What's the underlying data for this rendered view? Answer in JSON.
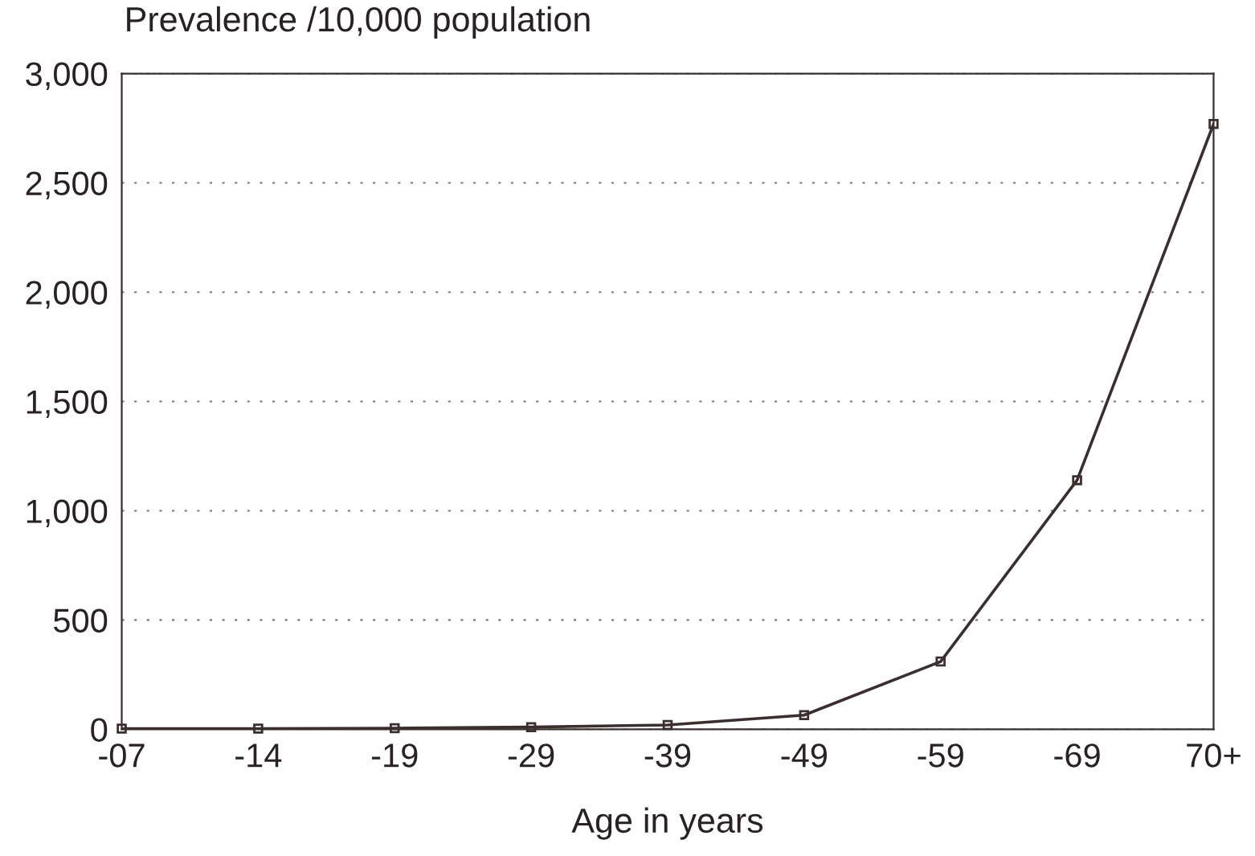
{
  "chart_data": {
    "type": "line",
    "ylabel": "Prevalence /10,000 population",
    "xlabel": "Age in years",
    "categories": [
      "-07",
      "-14",
      "-19",
      "-29",
      "-39",
      "-49",
      "-59",
      "-69",
      "70+"
    ],
    "series": [
      {
        "color": "#3a2e2e",
        "values": [
          3,
          3,
          5,
          10,
          20,
          65,
          310,
          1140,
          2770
        ]
      }
    ],
    "ylim": [
      0,
      3000
    ],
    "yticks": [
      {
        "value": 0,
        "label": "0"
      },
      {
        "value": 500,
        "label": "500"
      },
      {
        "value": 1000,
        "label": "1,000"
      },
      {
        "value": 1500,
        "label": "1,500"
      },
      {
        "value": 2000,
        "label": "2,000"
      },
      {
        "value": 2500,
        "label": "2,500"
      },
      {
        "value": 3000,
        "label": "3,000"
      }
    ],
    "grid": "y",
    "marker": "square",
    "line_style": "solid",
    "legend": false
  }
}
